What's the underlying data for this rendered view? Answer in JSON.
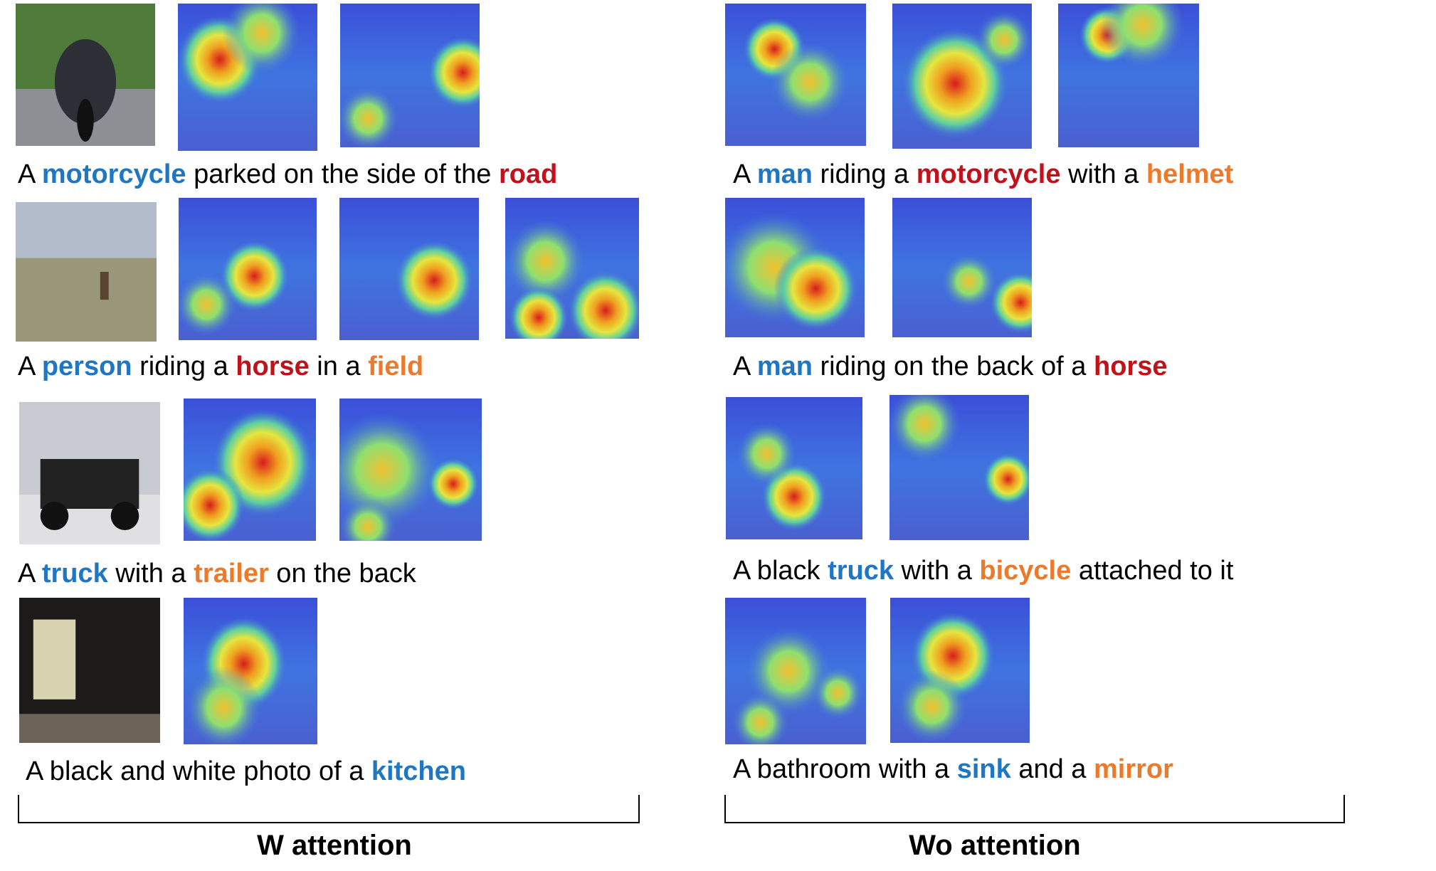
{
  "colors": {
    "object": "#1f77c4",
    "primary": "#c0121a",
    "secondary": "#ec7a2c"
  },
  "groups": {
    "left_label": "W attention",
    "right_label": "Wo attention"
  },
  "captions": {
    "l1": [
      "A ",
      "motorcycle",
      " parked on the side of the ",
      "road"
    ],
    "r1": [
      "A ",
      "man",
      " riding a ",
      "motorcycle",
      " with a ",
      "helmet"
    ],
    "l2": [
      "A ",
      "person",
      " riding a ",
      "horse",
      " in a ",
      "field"
    ],
    "r2": [
      "A ",
      "man",
      " riding on the back of a ",
      "horse"
    ],
    "l3": [
      "A ",
      "truck",
      " with a ",
      "trailer",
      " on the back"
    ],
    "r3": [
      "A black ",
      "truck",
      " with a ",
      "bicycle",
      " attached to it"
    ],
    "l4": [
      "A black and white photo of a ",
      "kitchen"
    ],
    "r4": [
      "A bathroom with a ",
      "sink",
      " and a ",
      "mirror"
    ]
  }
}
